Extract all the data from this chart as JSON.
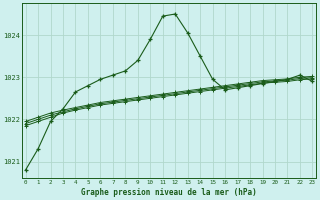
{
  "title": "Graphe pression niveau de la mer (hPa)",
  "background_color": "#cff0ee",
  "grid_color": "#b0d8cc",
  "line_color": "#1a5c1a",
  "x_ticks": [
    0,
    1,
    2,
    3,
    4,
    5,
    6,
    7,
    8,
    9,
    10,
    11,
    12,
    13,
    14,
    15,
    16,
    17,
    18,
    19,
    20,
    21,
    22,
    23
  ],
  "y_ticks": [
    1021,
    1022,
    1023,
    1024
  ],
  "ylim": [
    1020.6,
    1024.75
  ],
  "xlim": [
    -0.3,
    23.3
  ],
  "series1": [
    1020.8,
    1021.3,
    1021.95,
    1022.25,
    1022.65,
    1022.8,
    1022.95,
    1023.05,
    1023.15,
    1023.4,
    1023.9,
    1024.45,
    1024.5,
    1024.05,
    1023.5,
    1022.95,
    1022.7,
    1022.75,
    1022.8,
    1022.85,
    1022.9,
    1022.95,
    1023.05,
    1022.9
  ],
  "series2": [
    1021.85,
    1021.95,
    1022.05,
    1022.15,
    1022.22,
    1022.28,
    1022.34,
    1022.38,
    1022.42,
    1022.46,
    1022.5,
    1022.54,
    1022.58,
    1022.62,
    1022.66,
    1022.7,
    1022.74,
    1022.78,
    1022.82,
    1022.86,
    1022.88,
    1022.9,
    1022.94,
    1022.96
  ],
  "series3": [
    1021.9,
    1022.0,
    1022.1,
    1022.18,
    1022.25,
    1022.31,
    1022.37,
    1022.41,
    1022.45,
    1022.49,
    1022.53,
    1022.57,
    1022.61,
    1022.65,
    1022.69,
    1022.73,
    1022.77,
    1022.81,
    1022.85,
    1022.89,
    1022.91,
    1022.93,
    1022.97,
    1022.99
  ],
  "series4": [
    1021.95,
    1022.05,
    1022.15,
    1022.22,
    1022.28,
    1022.34,
    1022.4,
    1022.44,
    1022.48,
    1022.52,
    1022.56,
    1022.6,
    1022.64,
    1022.68,
    1022.72,
    1022.76,
    1022.8,
    1022.84,
    1022.88,
    1022.92,
    1022.94,
    1022.96,
    1023.0,
    1023.02
  ]
}
